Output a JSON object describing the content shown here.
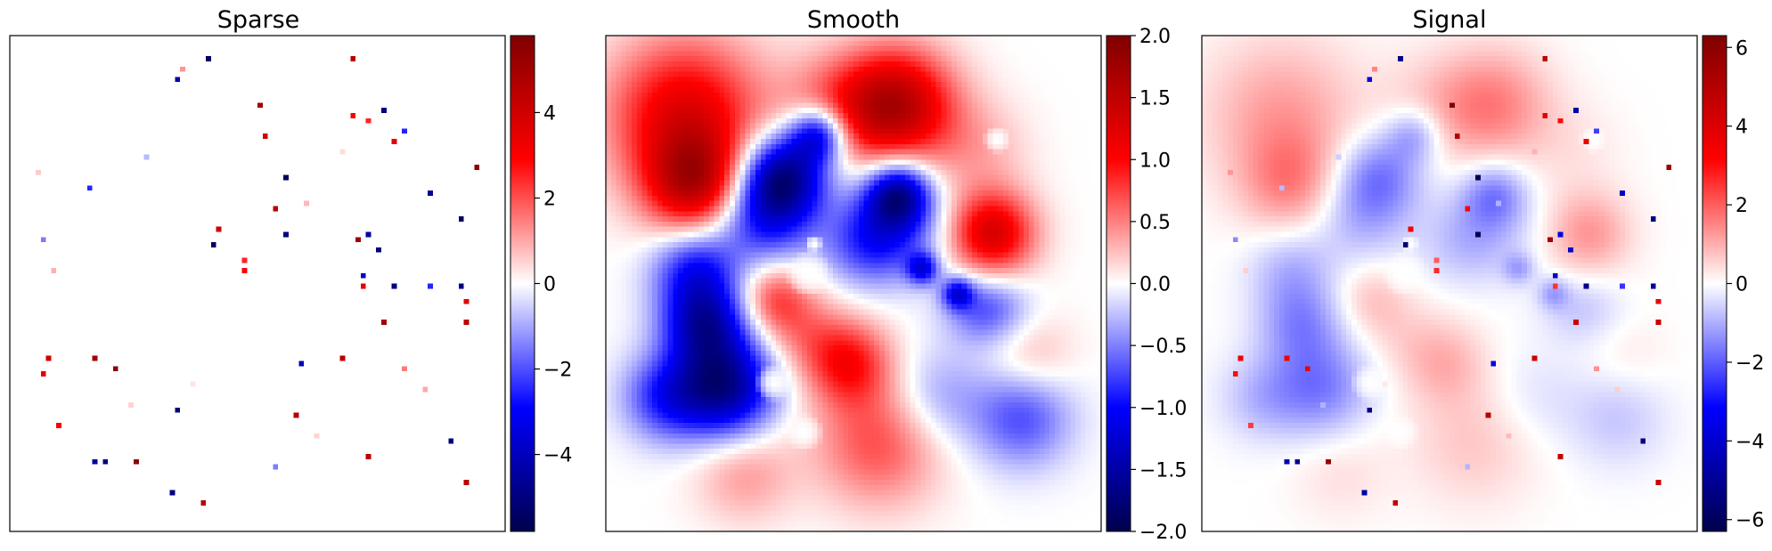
{
  "chart_data": [
    {
      "type": "heatmap",
      "title": "Sparse",
      "colormap": "seismic",
      "colorbar": {
        "vmin": -5.8,
        "vmax": 5.8,
        "ticks": [
          -4,
          -2,
          0,
          2,
          4
        ]
      },
      "grid": false,
      "points": [
        {
          "x": 0.4,
          "y": 0.95,
          "v": -5.5
        },
        {
          "x": 0.35,
          "y": 0.93,
          "v": 1.2
        },
        {
          "x": 0.34,
          "y": 0.91,
          "v": -4.0
        },
        {
          "x": 0.69,
          "y": 0.95,
          "v": 4.5
        },
        {
          "x": 0.51,
          "y": 0.86,
          "v": 5.0
        },
        {
          "x": 0.69,
          "y": 0.84,
          "v": 3.0
        },
        {
          "x": 0.76,
          "y": 0.85,
          "v": -5.0
        },
        {
          "x": 0.72,
          "y": 0.83,
          "v": 2.5
        },
        {
          "x": 0.8,
          "y": 0.81,
          "v": -2.5
        },
        {
          "x": 0.52,
          "y": 0.8,
          "v": 4.0
        },
        {
          "x": 0.78,
          "y": 0.79,
          "v": 3.5
        },
        {
          "x": 0.28,
          "y": 0.76,
          "v": -0.8
        },
        {
          "x": 0.67,
          "y": 0.77,
          "v": 0.4
        },
        {
          "x": 0.94,
          "y": 0.73,
          "v": 5.5
        },
        {
          "x": 0.06,
          "y": 0.72,
          "v": 0.6
        },
        {
          "x": 0.56,
          "y": 0.71,
          "v": -5.5
        },
        {
          "x": 0.16,
          "y": 0.69,
          "v": -2.5
        },
        {
          "x": 0.85,
          "y": 0.68,
          "v": -4.5
        },
        {
          "x": 0.6,
          "y": 0.66,
          "v": 0.8
        },
        {
          "x": 0.54,
          "y": 0.65,
          "v": 4.5
        },
        {
          "x": 0.91,
          "y": 0.63,
          "v": -5.5
        },
        {
          "x": 0.42,
          "y": 0.61,
          "v": 4.0
        },
        {
          "x": 0.56,
          "y": 0.6,
          "v": -5.0
        },
        {
          "x": 0.07,
          "y": 0.59,
          "v": -1.5
        },
        {
          "x": 0.41,
          "y": 0.58,
          "v": -5.5
        },
        {
          "x": 0.72,
          "y": 0.6,
          "v": -4.5
        },
        {
          "x": 0.7,
          "y": 0.59,
          "v": 5.0
        },
        {
          "x": 0.74,
          "y": 0.57,
          "v": -5.0
        },
        {
          "x": 0.47,
          "y": 0.55,
          "v": 2.5
        },
        {
          "x": 0.47,
          "y": 0.53,
          "v": 3.0
        },
        {
          "x": 0.09,
          "y": 0.53,
          "v": 0.9
        },
        {
          "x": 0.71,
          "y": 0.52,
          "v": -4.0
        },
        {
          "x": 0.71,
          "y": 0.5,
          "v": 3.5
        },
        {
          "x": 0.78,
          "y": 0.49,
          "v": -5.0
        },
        {
          "x": 0.85,
          "y": 0.49,
          "v": -2.5
        },
        {
          "x": 0.91,
          "y": 0.49,
          "v": -5.0
        },
        {
          "x": 0.92,
          "y": 0.46,
          "v": 3.5
        },
        {
          "x": 0.75,
          "y": 0.42,
          "v": 5.0
        },
        {
          "x": 0.92,
          "y": 0.42,
          "v": 4.5
        },
        {
          "x": 0.08,
          "y": 0.35,
          "v": 4.0
        },
        {
          "x": 0.17,
          "y": 0.35,
          "v": 5.0
        },
        {
          "x": 0.21,
          "y": 0.33,
          "v": 5.5
        },
        {
          "x": 0.07,
          "y": 0.32,
          "v": 3.5
        },
        {
          "x": 0.67,
          "y": 0.35,
          "v": 4.5
        },
        {
          "x": 0.59,
          "y": 0.34,
          "v": -4.0
        },
        {
          "x": 0.8,
          "y": 0.33,
          "v": 1.5
        },
        {
          "x": 0.37,
          "y": 0.3,
          "v": 0.3
        },
        {
          "x": 0.84,
          "y": 0.29,
          "v": 1.0
        },
        {
          "x": 0.24,
          "y": 0.26,
          "v": 0.5
        },
        {
          "x": 0.34,
          "y": 0.25,
          "v": -5.0
        },
        {
          "x": 0.1,
          "y": 0.21,
          "v": 3.0
        },
        {
          "x": 0.58,
          "y": 0.23,
          "v": 4.5
        },
        {
          "x": 0.62,
          "y": 0.19,
          "v": 0.5
        },
        {
          "x": 0.89,
          "y": 0.18,
          "v": -5.0
        },
        {
          "x": 0.17,
          "y": 0.14,
          "v": -4.5
        },
        {
          "x": 0.19,
          "y": 0.14,
          "v": -5.0
        },
        {
          "x": 0.25,
          "y": 0.14,
          "v": 5.5
        },
        {
          "x": 0.54,
          "y": 0.13,
          "v": -1.5
        },
        {
          "x": 0.72,
          "y": 0.15,
          "v": 4.5
        },
        {
          "x": 0.92,
          "y": 0.1,
          "v": 4.5
        },
        {
          "x": 0.33,
          "y": 0.08,
          "v": -5.0
        },
        {
          "x": 0.39,
          "y": 0.06,
          "v": 4.5
        }
      ]
    },
    {
      "type": "heatmap",
      "title": "Smooth",
      "colormap": "seismic",
      "colorbar": {
        "vmin": -2.0,
        "vmax": 2.0,
        "ticks": [
          -2.0,
          -1.5,
          -1.0,
          -0.5,
          0.0,
          0.5,
          1.0,
          1.5,
          2.0
        ]
      },
      "grid": false,
      "sources": [
        {
          "x": 0.59,
          "y": 0.86,
          "a": 1.5,
          "s": 0.08
        },
        {
          "x": 0.47,
          "y": 0.85,
          "a": 0.6,
          "s": 0.08
        },
        {
          "x": 0.16,
          "y": 0.84,
          "a": 1.2,
          "s": 0.11
        },
        {
          "x": 0.18,
          "y": 0.7,
          "a": 1.3,
          "s": 0.07
        },
        {
          "x": 0.36,
          "y": 0.72,
          "a": -1.5,
          "s": 0.06
        },
        {
          "x": 0.32,
          "y": 0.64,
          "a": -1.0,
          "s": 0.07
        },
        {
          "x": 0.43,
          "y": 0.8,
          "a": -1.3,
          "s": 0.04
        },
        {
          "x": 0.59,
          "y": 0.68,
          "a": -1.4,
          "s": 0.045
        },
        {
          "x": 0.58,
          "y": 0.61,
          "a": -0.7,
          "s": 0.07
        },
        {
          "x": 0.52,
          "y": 0.58,
          "a": -0.5,
          "s": 0.06
        },
        {
          "x": 0.78,
          "y": 0.6,
          "a": 1.3,
          "s": 0.06
        },
        {
          "x": 0.75,
          "y": 0.77,
          "a": 0.3,
          "s": 0.07
        },
        {
          "x": 0.18,
          "y": 0.53,
          "a": -0.9,
          "s": 0.06
        },
        {
          "x": 0.2,
          "y": 0.42,
          "a": -1.3,
          "s": 0.06
        },
        {
          "x": 0.24,
          "y": 0.29,
          "a": -1.6,
          "s": 0.07
        },
        {
          "x": 0.12,
          "y": 0.27,
          "a": -0.8,
          "s": 0.06
        },
        {
          "x": 0.34,
          "y": 0.47,
          "a": 0.7,
          "s": 0.05
        },
        {
          "x": 0.49,
          "y": 0.34,
          "a": 0.9,
          "s": 0.06
        },
        {
          "x": 0.55,
          "y": 0.18,
          "a": 0.7,
          "s": 0.09
        },
        {
          "x": 0.4,
          "y": 0.4,
          "a": 0.4,
          "s": 0.06
        },
        {
          "x": 0.75,
          "y": 0.45,
          "a": -0.5,
          "s": 0.05
        },
        {
          "x": 0.8,
          "y": 0.45,
          "a": -0.3,
          "s": 0.05
        },
        {
          "x": 0.86,
          "y": 0.35,
          "a": 0.3,
          "s": 0.06
        },
        {
          "x": 0.84,
          "y": 0.23,
          "a": -0.7,
          "s": 0.07
        },
        {
          "x": 0.67,
          "y": 0.27,
          "a": -0.4,
          "s": 0.07
        },
        {
          "x": 0.28,
          "y": 0.12,
          "a": 0.4,
          "s": 0.07
        },
        {
          "x": 0.71,
          "y": 0.48,
          "a": -1.0,
          "s": 0.022
        },
        {
          "x": 0.64,
          "y": 0.53,
          "a": -1.0,
          "s": 0.022
        }
      ],
      "holes": [
        {
          "x": 0.79,
          "y": 0.79,
          "r": 0.018
        },
        {
          "x": 0.41,
          "y": 0.52,
          "r": 0.03
        },
        {
          "x": 0.34,
          "y": 0.3,
          "r": 0.025
        },
        {
          "x": 0.4,
          "y": 0.2,
          "r": 0.025
        },
        {
          "x": 0.42,
          "y": 0.58,
          "r": 0.012
        }
      ]
    },
    {
      "type": "heatmap",
      "title": "Signal",
      "colormap": "seismic",
      "colorbar": {
        "vmin": -6.3,
        "vmax": 6.3,
        "ticks": [
          -6,
          -4,
          -2,
          0,
          2,
          4,
          6
        ]
      },
      "grid": false,
      "composition": "Sparse + Smooth"
    }
  ]
}
